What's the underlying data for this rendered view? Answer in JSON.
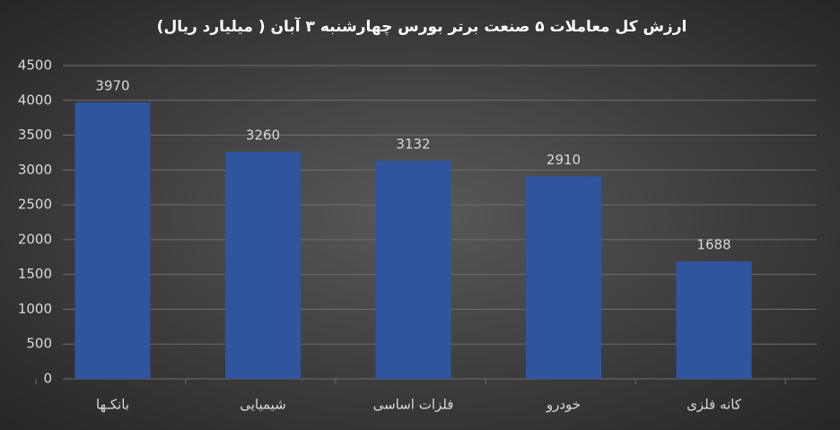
{
  "chart_data": {
    "type": "bar",
    "title": "ارزش کل معاملات ۵ صنعت برتر بورس چهارشنبه ۳ آبان ( میلیارد ریال)",
    "categories": [
      "بانکـها",
      "شیمیایی",
      "فلزات اساسی",
      "خودرو",
      "کانه فلزی"
    ],
    "values": [
      3970,
      3260,
      3132,
      2910,
      1688
    ],
    "color": "#2f559e",
    "ylim": [
      0,
      4500
    ],
    "yticks": [
      0,
      500,
      1000,
      1500,
      2000,
      2500,
      3000,
      3500,
      4000,
      4500
    ],
    "grid": true
  }
}
